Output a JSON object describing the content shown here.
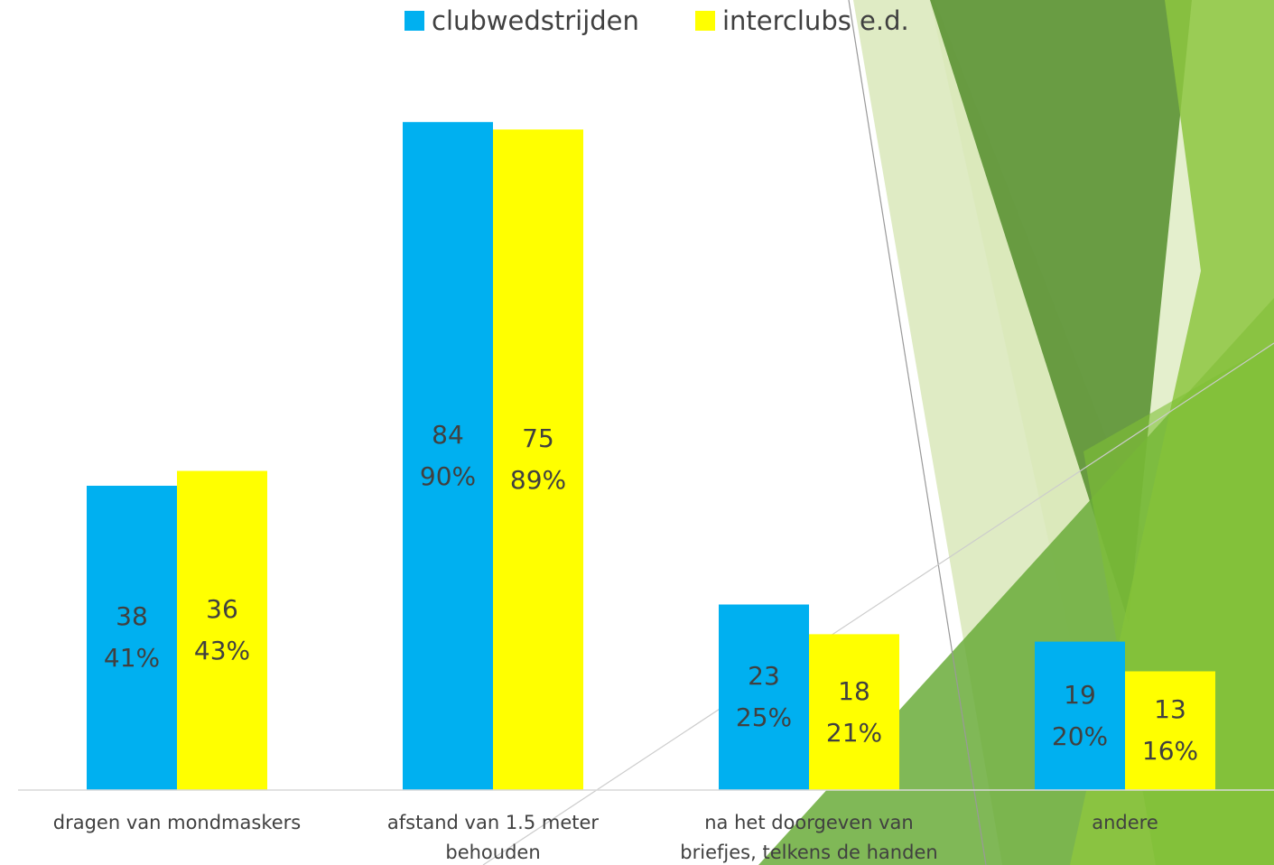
{
  "chart_data": {
    "type": "bar",
    "categories": [
      "dragen van mondmaskers",
      "afstand van 1.5 meter behouden",
      "na het doorgeven van briefjes, telkens de handen ontsmetten",
      "andere"
    ],
    "series": [
      {
        "name": "clubwedstrijden",
        "color": "#00b0f0",
        "counts": [
          38,
          84,
          23,
          19
        ],
        "values": [
          41,
          90,
          25,
          20
        ],
        "value_labels": [
          "41%",
          "90%",
          "25%",
          "20%"
        ]
      },
      {
        "name": "interclubs e.d.",
        "color": "#ffff00",
        "counts": [
          36,
          75,
          18,
          13
        ],
        "values": [
          43,
          89,
          21,
          16
        ],
        "value_labels": [
          "43%",
          "89%",
          "21%",
          "16%"
        ]
      }
    ],
    "ylim": [
      0,
      100
    ],
    "legend": "top"
  }
}
